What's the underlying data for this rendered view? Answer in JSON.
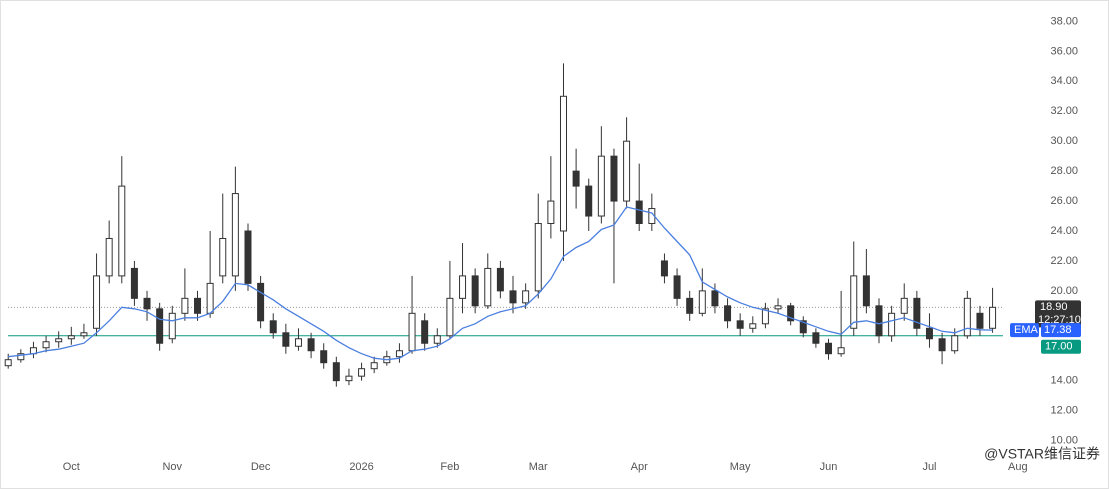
{
  "chart_data": {
    "type": "candlestick",
    "categories": [
      null,
      null,
      null,
      null,
      null,
      "Oct",
      null,
      null,
      null,
      null,
      null,
      null,
      null,
      "Nov",
      null,
      null,
      null,
      null,
      null,
      null,
      "Dec",
      null,
      null,
      null,
      null,
      null,
      null,
      null,
      "2026",
      null,
      null,
      null,
      null,
      null,
      null,
      "Feb",
      null,
      null,
      null,
      null,
      null,
      null,
      "Mar",
      null,
      null,
      null,
      null,
      null,
      null,
      null,
      "Apr",
      null,
      null,
      null,
      null,
      null,
      null,
      null,
      "May",
      null,
      null,
      null,
      null,
      null,
      null,
      "Jun",
      null,
      null,
      null,
      null,
      null,
      null,
      null,
      "Jul",
      null,
      null,
      null,
      null,
      null,
      null,
      "Aug"
    ],
    "open": [
      15.0,
      15.4,
      15.8,
      16.2,
      16.6,
      16.8,
      17.0,
      17.5,
      21.0,
      21.0,
      21.5,
      19.5,
      18.8,
      16.8,
      18.5,
      19.5,
      18.5,
      21.0,
      21.0,
      24.0,
      20.5,
      18.0,
      17.2,
      16.3,
      16.8,
      16.0,
      15.2,
      14.0,
      14.3,
      14.8,
      15.2,
      15.6,
      16.0,
      18.0,
      16.5,
      17.0,
      19.5,
      21.0,
      19.0,
      21.5,
      20.0,
      19.2,
      20.0,
      24.5,
      24.0,
      28.0,
      27.0,
      25.0,
      29.0,
      26.0,
      26.0,
      24.5,
      22.0,
      21.0,
      19.5,
      18.5,
      20.0,
      19.0,
      18.0,
      17.5,
      17.8,
      18.8,
      19.0,
      18.0,
      17.2,
      16.5,
      15.8,
      17.5,
      21.0,
      19.0,
      17.0,
      18.5,
      19.5,
      17.5,
      16.8,
      16.0,
      17.0,
      18.5,
      17.5,
      null,
      null
    ],
    "high": [
      15.8,
      16.1,
      16.6,
      17.0,
      17.3,
      17.6,
      17.8,
      22.5,
      24.7,
      29.0,
      22.0,
      20.0,
      19.2,
      19.0,
      21.5,
      20.0,
      24.0,
      26.5,
      28.3,
      24.5,
      21.0,
      18.5,
      17.8,
      17.5,
      17.2,
      16.5,
      15.6,
      14.8,
      15.2,
      15.6,
      16.0,
      16.5,
      21.0,
      18.5,
      17.5,
      22.0,
      23.2,
      21.5,
      22.5,
      22.0,
      21.0,
      20.5,
      26.5,
      29.0,
      35.2,
      29.5,
      27.5,
      31.0,
      29.5,
      31.6,
      28.5,
      26.5,
      22.5,
      21.5,
      20.0,
      21.5,
      20.5,
      19.5,
      18.5,
      18.3,
      19.2,
      19.5,
      19.2,
      18.3,
      17.5,
      16.8,
      20.0,
      23.3,
      22.8,
      19.5,
      19.0,
      20.5,
      20.0,
      18.5,
      17.2,
      17.5,
      20.0,
      19.0,
      20.2,
      null,
      null
    ],
    "low": [
      14.8,
      15.2,
      15.5,
      15.9,
      16.2,
      16.4,
      16.8,
      17.0,
      20.5,
      20.5,
      19.0,
      18.0,
      16.0,
      16.5,
      18.0,
      18.0,
      18.2,
      20.5,
      20.0,
      20.0,
      17.5,
      16.8,
      15.8,
      16.0,
      15.5,
      14.8,
      13.6,
      13.7,
      14.0,
      14.5,
      15.0,
      15.2,
      15.8,
      16.0,
      16.2,
      16.8,
      18.5,
      18.5,
      18.8,
      19.5,
      18.5,
      18.8,
      19.5,
      23.5,
      22.0,
      25.5,
      24.0,
      24.5,
      20.5,
      25.5,
      24.0,
      24.0,
      20.5,
      19.0,
      18.0,
      18.3,
      18.5,
      17.5,
      17.0,
      17.2,
      17.5,
      18.5,
      17.7,
      16.9,
      16.2,
      15.4,
      15.6,
      17.0,
      18.5,
      16.5,
      16.6,
      18.0,
      17.0,
      16.2,
      15.1,
      15.8,
      16.8,
      17.0,
      17.2,
      null,
      null
    ],
    "close": [
      15.4,
      15.8,
      16.2,
      16.6,
      16.8,
      17.0,
      17.2,
      21.0,
      23.5,
      27.0,
      19.5,
      18.8,
      16.5,
      18.5,
      19.5,
      18.5,
      20.5,
      23.5,
      26.5,
      20.5,
      18.0,
      17.2,
      16.3,
      16.8,
      16.0,
      15.2,
      14.0,
      14.3,
      14.8,
      15.2,
      15.6,
      16.0,
      18.5,
      16.5,
      17.0,
      19.5,
      21.0,
      19.0,
      21.5,
      20.0,
      19.2,
      20.0,
      24.5,
      26.0,
      33.0,
      27.0,
      25.0,
      29.0,
      26.0,
      30.0,
      24.5,
      25.5,
      21.0,
      19.5,
      18.5,
      20.0,
      19.0,
      18.0,
      17.5,
      17.8,
      18.8,
      19.0,
      18.0,
      17.2,
      16.5,
      15.8,
      16.2,
      21.0,
      19.0,
      17.0,
      18.5,
      19.5,
      17.5,
      16.8,
      16.0,
      17.0,
      19.5,
      17.5,
      18.9,
      null,
      null
    ],
    "up_color": "#ffffff",
    "down_color": "#333333",
    "wick_color": "#333333",
    "series": [
      {
        "name": "EMA",
        "color": "#4a7fe0",
        "values": [
          15.6,
          15.7,
          15.8,
          16.0,
          16.1,
          16.3,
          16.5,
          17.2,
          18.0,
          18.9,
          18.8,
          18.6,
          18.1,
          18.0,
          18.2,
          18.2,
          18.5,
          19.3,
          20.5,
          20.4,
          19.9,
          19.4,
          18.8,
          18.3,
          17.8,
          17.3,
          16.7,
          16.2,
          15.8,
          15.5,
          15.4,
          15.5,
          16.0,
          16.1,
          16.3,
          16.8,
          17.5,
          17.8,
          18.3,
          18.6,
          18.8,
          19.0,
          19.8,
          20.8,
          22.3,
          22.9,
          23.3,
          24.1,
          24.4,
          25.6,
          25.4,
          25.2,
          24.2,
          23.3,
          22.4,
          20.6,
          20.1,
          19.6,
          19.2,
          18.9,
          18.7,
          18.5,
          18.2,
          17.9,
          17.6,
          17.3,
          17.1,
          17.9,
          18.0,
          17.8,
          18.0,
          18.2,
          17.9,
          17.6,
          17.3,
          17.2,
          17.5,
          17.4,
          17.38,
          null,
          null
        ]
      }
    ],
    "ylim": [
      9.1,
      39.1
    ],
    "yticks": [
      {
        "value": 10,
        "label": "10.00"
      },
      {
        "value": 12,
        "label": "12.00"
      },
      {
        "value": 14,
        "label": "14.00"
      },
      {
        "value": 16,
        "label": "16.00"
      },
      {
        "value": 18,
        "label": "18.00"
      },
      {
        "value": 20,
        "label": "20.00"
      },
      {
        "value": 22,
        "label": "22.00"
      },
      {
        "value": 24,
        "label": "24.00"
      },
      {
        "value": 26,
        "label": "26.00"
      },
      {
        "value": 28,
        "label": "28.00"
      },
      {
        "value": 30,
        "label": "30.00"
      },
      {
        "value": 32,
        "label": "32.00"
      },
      {
        "value": 34,
        "label": "34.00"
      },
      {
        "value": 36,
        "label": "36.00"
      },
      {
        "value": 38,
        "label": "38.00"
      }
    ],
    "last_price": {
      "value": 18.9,
      "label": "18.90",
      "countdown": "12:27:10",
      "color": "#333333"
    },
    "ema_last": {
      "value": 17.38,
      "color": "#2962ff"
    },
    "level": {
      "value": 17,
      "label": "17.00",
      "color": "#089981"
    },
    "watermark": "@VSTAR维信证券"
  }
}
